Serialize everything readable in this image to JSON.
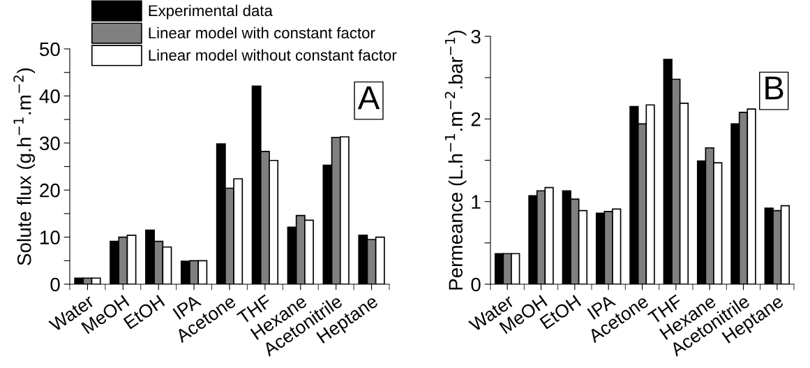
{
  "chart_data": [
    {
      "type": "bar",
      "ylabel": "Solute flux (g.h$^{−1}$.m$^{−2}$)",
      "categories": [
        "Water",
        "MeOH",
        "EtOH",
        "IPA",
        "Acetone",
        "THF",
        "Hexane",
        "Acetonitrile",
        "Heptane"
      ],
      "series": [
        {
          "name": "Experimental data",
          "color": "#000000",
          "values": [
            1.3,
            9.1,
            11.5,
            4.9,
            29.8,
            42.1,
            12.1,
            25.3,
            10.4
          ]
        },
        {
          "name": "Linear model with constant factor",
          "color": "#808080",
          "values": [
            1.3,
            10.0,
            9.1,
            5.0,
            20.4,
            28.2,
            14.6,
            31.2,
            9.5
          ]
        },
        {
          "name": "Linear model without constant factor",
          "color": "#ffffff",
          "values": [
            1.3,
            10.4,
            7.9,
            5.0,
            22.4,
            26.3,
            13.6,
            31.3,
            10.0
          ]
        }
      ],
      "ylim": [
        0,
        50
      ],
      "yticks": [
        0,
        {
          "value": 5,
          "label": null
        },
        10,
        {
          "value": 15,
          "label": null
        },
        20,
        {
          "value": 25,
          "label": null
        },
        30,
        {
          "value": 35,
          "label": null
        },
        40,
        {
          "value": 45,
          "label": null
        },
        50
      ],
      "annotations": [
        "A"
      ],
      "legend": "top left",
      "grid": false
    },
    {
      "type": "bar",
      "ylabel": "Permeance (L.h$^{−1}$.m$^{−2}$.bar$^{−1}$)",
      "categories": [
        "Water",
        "MeOH",
        "EtOH",
        "IPA",
        "Acetone",
        "THF",
        "Hexane",
        "Acetonitrile",
        "Heptane"
      ],
      "series": [
        {
          "color": "#000000",
          "values": [
            0.37,
            1.07,
            1.13,
            0.86,
            2.15,
            2.72,
            1.49,
            1.94,
            0.92
          ]
        },
        {
          "color": "#808080",
          "values": [
            0.37,
            1.13,
            1.03,
            0.88,
            1.94,
            2.48,
            1.65,
            2.08,
            0.89
          ]
        },
        {
          "color": "#ffffff",
          "values": [
            0.37,
            1.17,
            0.89,
            0.91,
            2.17,
            2.19,
            1.47,
            2.12,
            0.95
          ]
        }
      ],
      "ylim": [
        0,
        3
      ],
      "yticks": [
        0,
        {
          "value": 0.5,
          "label": null
        },
        1,
        {
          "value": 1.5,
          "label": null
        },
        2,
        {
          "value": 2.5,
          "label": null
        },
        3
      ],
      "annotations": [
        "B"
      ],
      "grid": false
    }
  ]
}
